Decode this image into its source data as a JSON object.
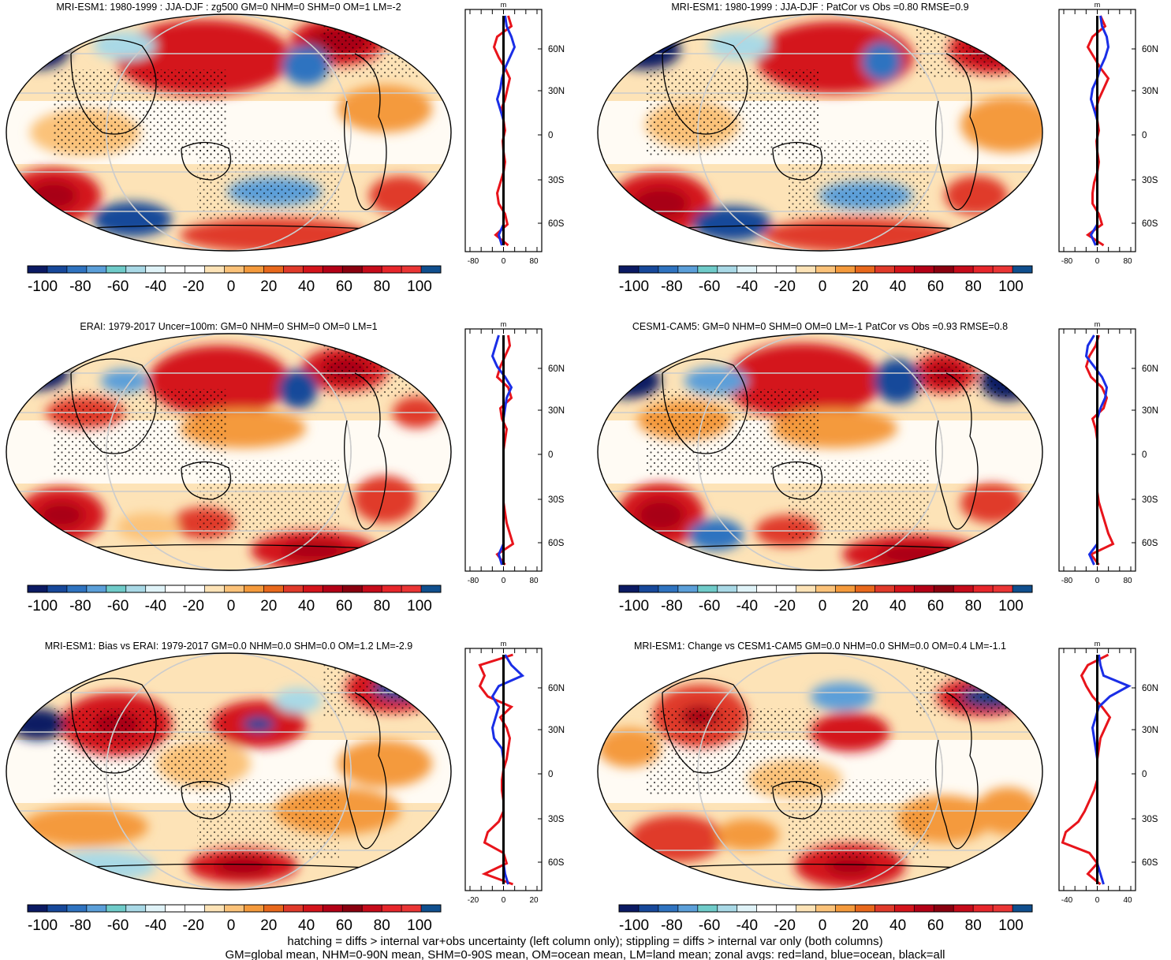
{
  "panels": [
    {
      "title": "MRI-ESM1: 1980-1999 : JJA-DJF : zg500 GM=0 NHM=0 SHM=0 OM=1 LM=-2",
      "side_ticks": [
        "-80",
        "0",
        "80"
      ],
      "side_unit": "m"
    },
    {
      "title": "MRI-ESM1: 1980-1999 : JJA-DJF : PatCor vs Obs =0.80 RMSE=0.9",
      "side_ticks": [
        "-80",
        "0",
        "80"
      ],
      "side_unit": "m"
    },
    {
      "title": "ERAI: 1979-2017 Uncer=100m: GM=0 NHM=0 SHM=0 OM=0 LM=1",
      "side_ticks": [
        "-80",
        "0",
        "80"
      ],
      "side_unit": "m"
    },
    {
      "title": "CESM1-CAM5: GM=0 NHM=0 SHM=0 OM=0 LM=-1 PatCor vs Obs =0.93 RMSE=0.8",
      "side_ticks": [
        "-80",
        "0",
        "80"
      ],
      "side_unit": "m"
    },
    {
      "title": "MRI-ESM1: Bias vs ERAI: 1979-2017 GM=0.0 NHM=0.0 SHM=0.0 OM=1.2 LM=-2.9",
      "side_ticks": [
        "-20",
        "0",
        "20"
      ],
      "side_unit": "m"
    },
    {
      "title": "MRI-ESM1: Change vs CESM1-CAM5 GM=0.0 NHM=0.0 SHM=0.0 OM=0.4 LM=-1.1",
      "side_ticks": [
        "-40",
        "0",
        "40"
      ],
      "side_unit": "m"
    }
  ],
  "lat_labels": [
    "60N",
    "30N",
    "0",
    "30S",
    "60S"
  ],
  "colorbar": {
    "labels": [
      "-100",
      "-80",
      "-60",
      "-40",
      "-20",
      "0",
      "20",
      "40",
      "60",
      "80",
      "100"
    ],
    "colors": [
      "#0b1a63",
      "#17489a",
      "#2f73c0",
      "#5b9fd9",
      "#6fcbc9",
      "#a9d9e6",
      "#e0f3f8",
      "#ffffff",
      "#ffffff",
      "#fde3b7",
      "#fbc279",
      "#f49a3c",
      "#e8681c",
      "#e03a2a",
      "#d4141b",
      "#b30016",
      "#8a000f",
      "#c60b1a",
      "#e7262b",
      "#ea3535",
      "#104f8e"
    ]
  },
  "footer": {
    "line1": "hatching = diffs > internal var+obs uncertainty (left column only); stippling = diffs > internal var only (both columns)",
    "line2": "GM=global mean, NHM=0-90N mean, SHM=0-90S mean, OM=ocean mean, LM=land mean; zonal avgs: red=land, blue=ocean, black=all"
  }
}
